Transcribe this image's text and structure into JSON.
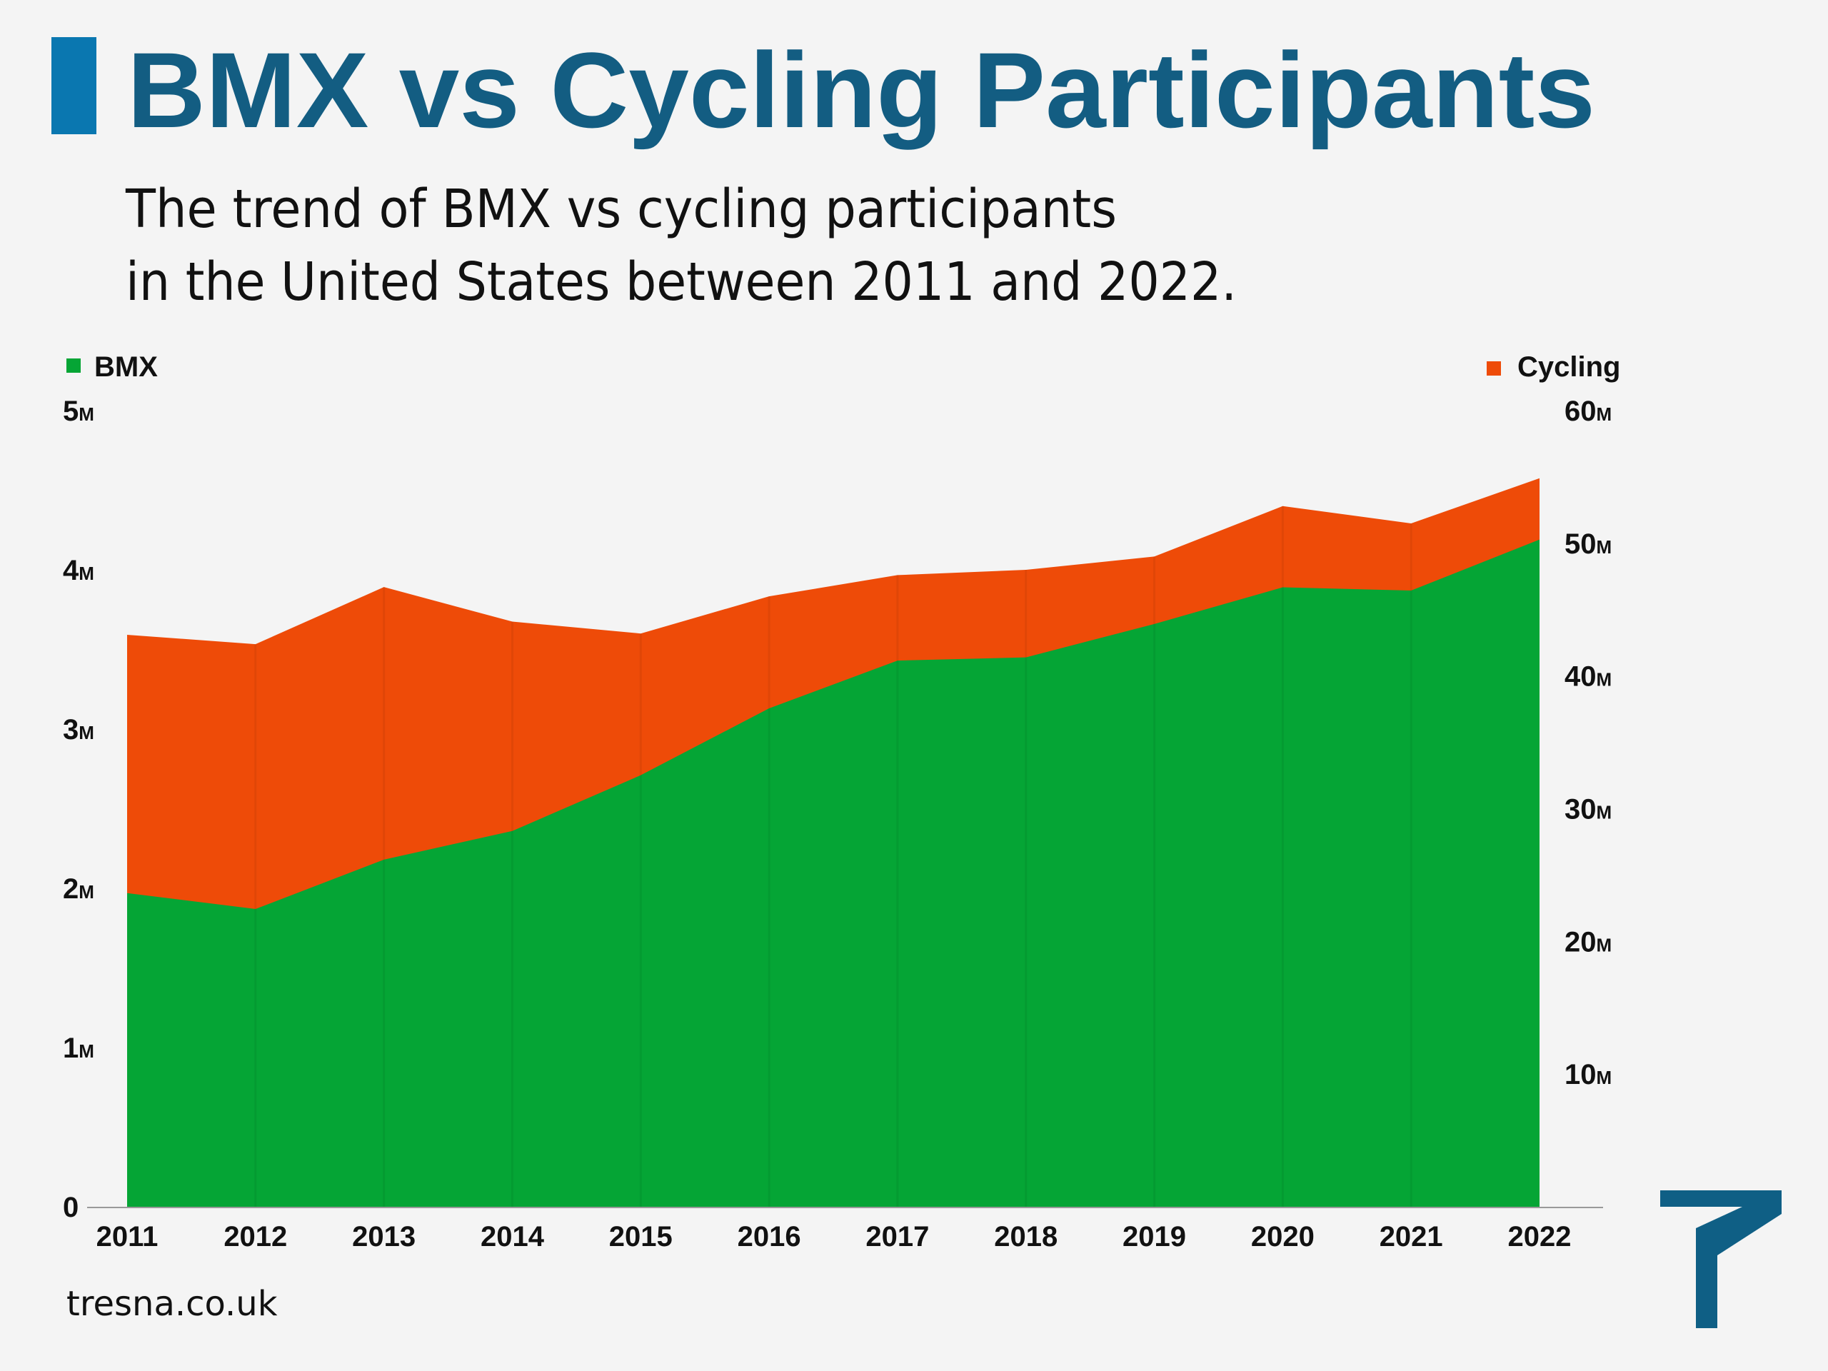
{
  "title": "BMX vs Cycling Participants",
  "subtitle_lines": [
    "The trend of BMX vs cycling participants",
    "in the United States between 2011 and 2022."
  ],
  "footer": "tresna.co.uk",
  "colors": {
    "bmx": "#05a535",
    "cycling": "#ee4b08",
    "title": "#135d82",
    "accent": "#0a77b0",
    "logo": "#0f5f85"
  },
  "chart_data": {
    "type": "area",
    "title": "BMX vs Cycling Participants",
    "x": [
      "2011",
      "2012",
      "2013",
      "2014",
      "2015",
      "2016",
      "2017",
      "2018",
      "2019",
      "2020",
      "2021",
      "2022"
    ],
    "series": [
      {
        "name": "BMX",
        "axis": "left",
        "unit": "M",
        "values": [
          1.97,
          1.87,
          2.18,
          2.36,
          2.71,
          3.13,
          3.43,
          3.45,
          3.66,
          3.89,
          3.87,
          4.19
        ]
      },
      {
        "name": "Cycling",
        "axis": "right",
        "unit": "M",
        "values": [
          43.1,
          42.4,
          46.7,
          44.1,
          43.2,
          46.0,
          47.6,
          48.0,
          49.0,
          52.8,
          51.5,
          54.9
        ]
      }
    ],
    "left_axis": {
      "range": [
        0,
        5
      ],
      "ticks": [
        {
          "v": 0,
          "n": "0",
          "u": ""
        },
        {
          "v": 1,
          "n": "1",
          "u": "M"
        },
        {
          "v": 2,
          "n": "2",
          "u": "M"
        },
        {
          "v": 3,
          "n": "3",
          "u": "M"
        },
        {
          "v": 4,
          "n": "4",
          "u": "M"
        },
        {
          "v": 5,
          "n": "5",
          "u": "M"
        }
      ]
    },
    "right_axis": {
      "range": [
        0,
        60
      ],
      "ticks": [
        {
          "v": 10,
          "n": "10",
          "u": "M"
        },
        {
          "v": 20,
          "n": "20",
          "u": "M"
        },
        {
          "v": 30,
          "n": "30",
          "u": "M"
        },
        {
          "v": 40,
          "n": "40",
          "u": "M"
        },
        {
          "v": 50,
          "n": "50",
          "u": "M"
        },
        {
          "v": 60,
          "n": "60",
          "u": "M"
        }
      ]
    },
    "legend": [
      {
        "label": "BMX",
        "placement": "top-left"
      },
      {
        "label": "Cycling",
        "placement": "top-right"
      }
    ],
    "grid": false
  }
}
